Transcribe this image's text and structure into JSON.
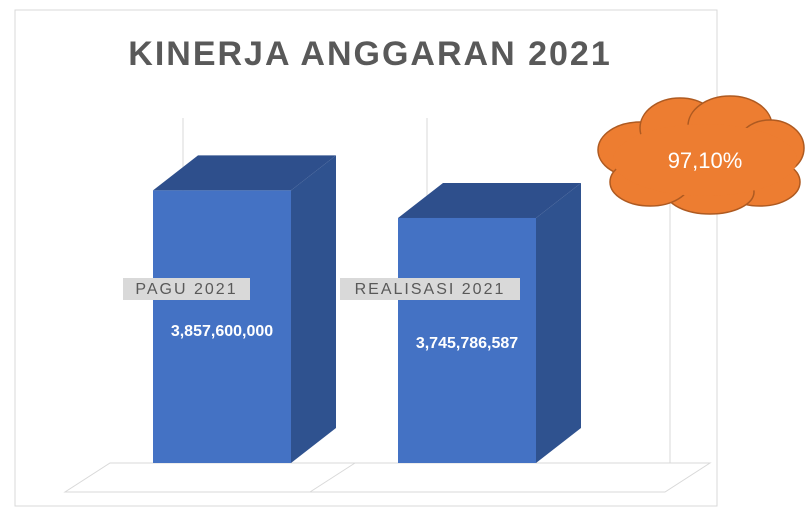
{
  "chart_data": {
    "type": "bar",
    "title": "KINERJA ANGGARAN 2021",
    "categories": [
      "PAGU 2021",
      "REALISASI 2021"
    ],
    "values": [
      3857600000,
      3745786587
    ],
    "value_labels": [
      "3,857,600,000",
      "3,745,786,587"
    ],
    "color": "#4472c4",
    "ylim": [
      2750000000,
      3900000000
    ],
    "annotation": "97,10%",
    "annotation_color": "#ed7d31"
  }
}
